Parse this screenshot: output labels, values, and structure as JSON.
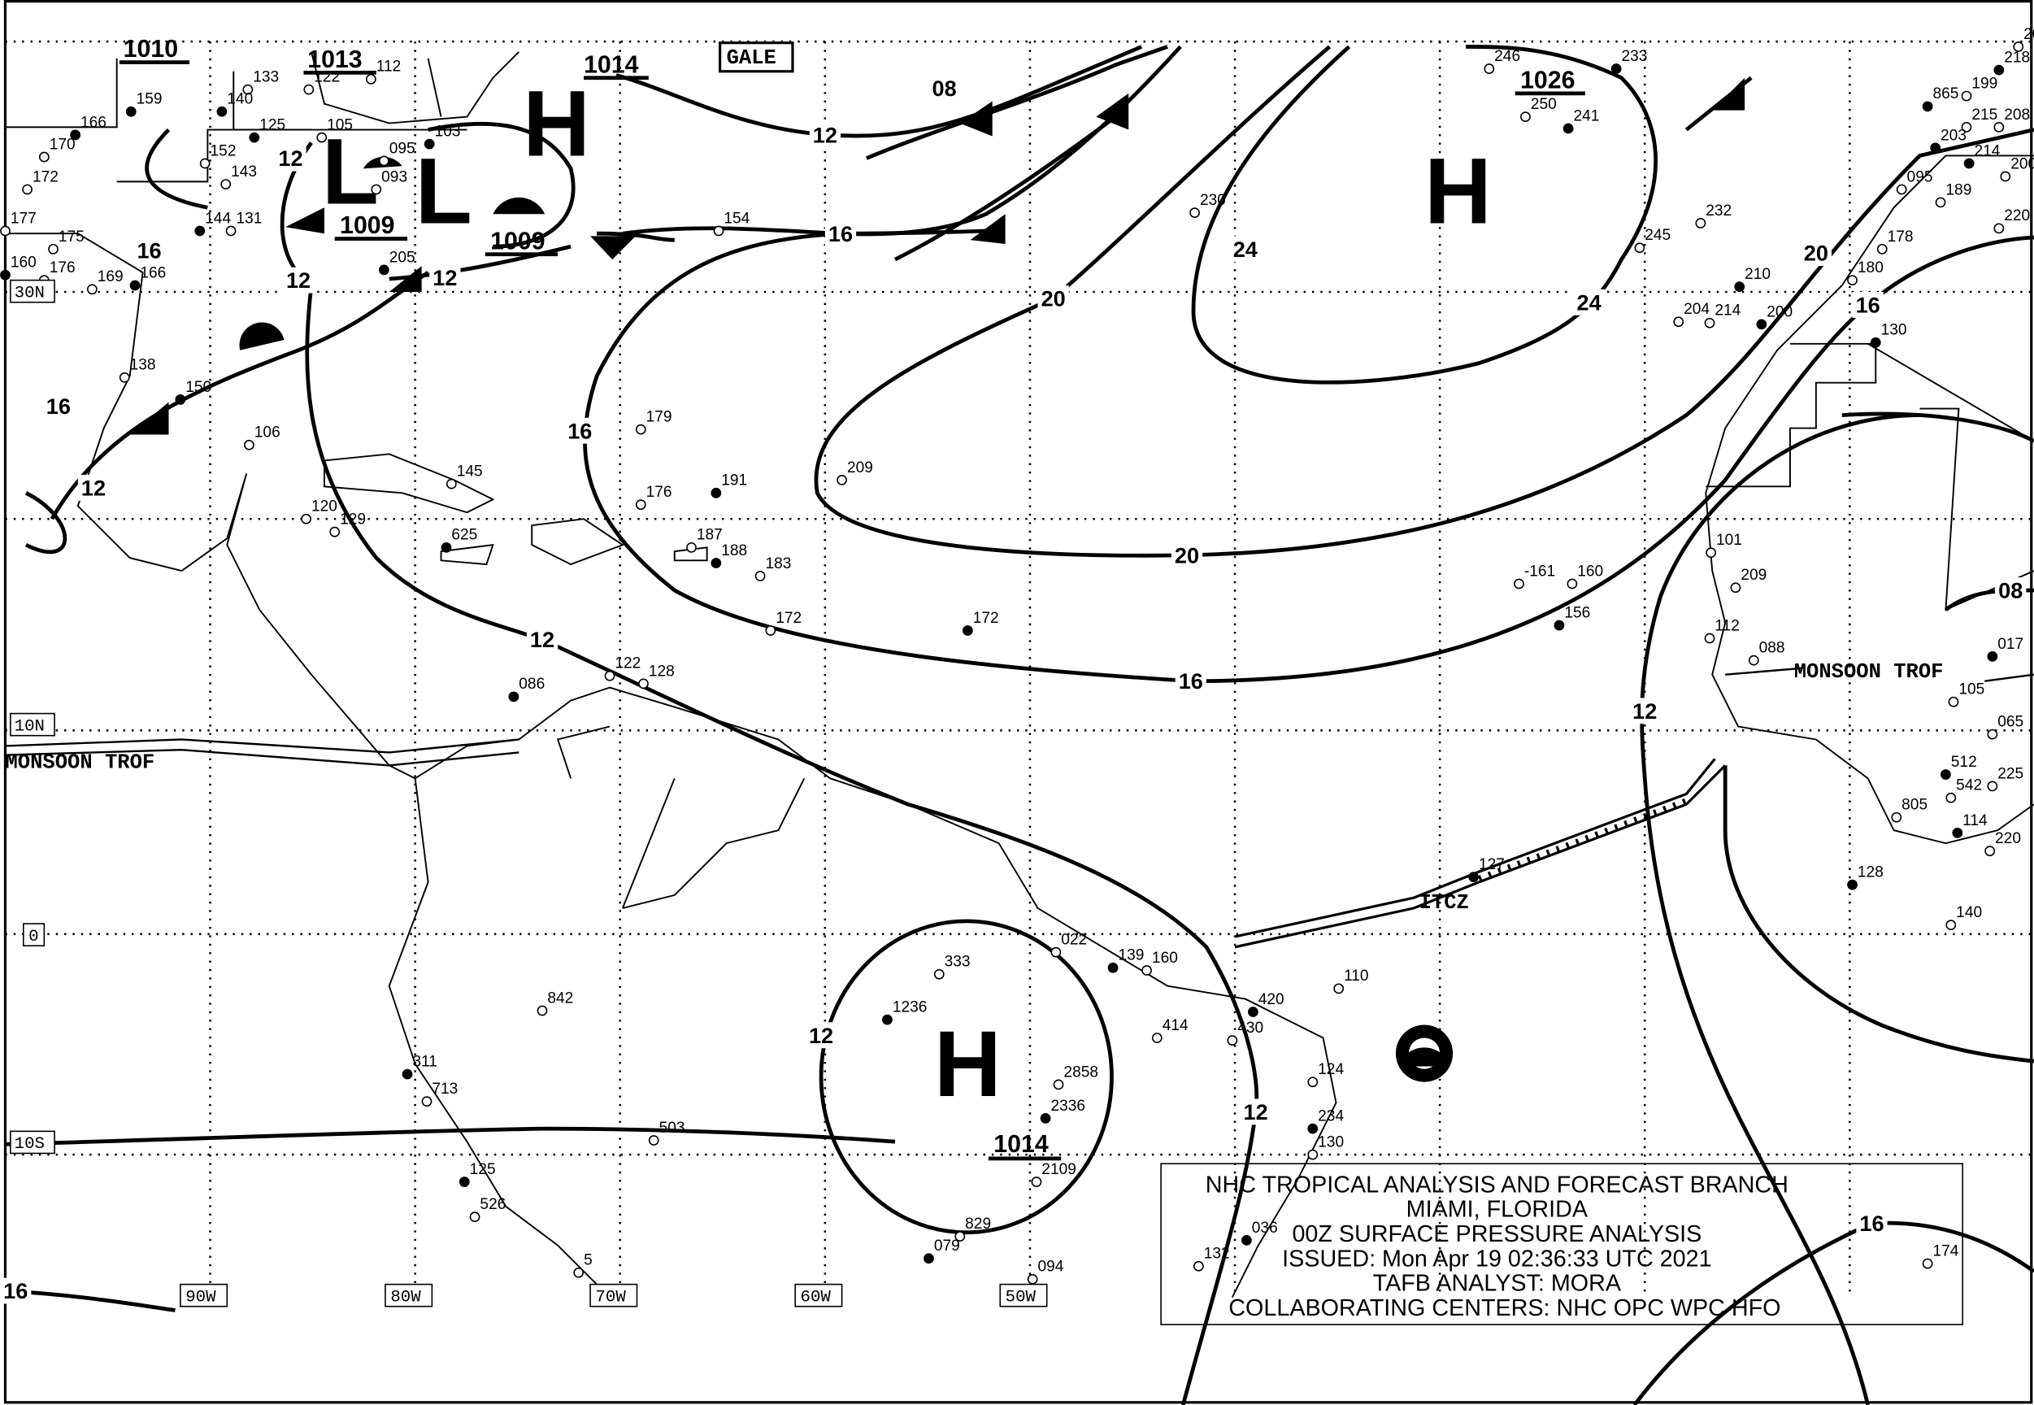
{
  "map": {
    "title_block": {
      "line1": "NHC TROPICAL ANALYSIS AND FORECAST BRANCH",
      "line2": "MIAMI, FLORIDA",
      "line3": "00Z SURFACE PRESSURE ANALYSIS",
      "line4": "ISSUED: Mon Apr 19 02:36:33 UTC 2021",
      "line5": "TAFB ANALYST: MORA",
      "line6": "COLLABORATING CENTERS: NHC OPC WPC HFO"
    },
    "pressure_centers": [
      {
        "type": "H",
        "value": "1014"
      },
      {
        "type": "H",
        "value": "1026"
      },
      {
        "type": "H",
        "value": "1014"
      },
      {
        "type": "L",
        "value": "1009"
      },
      {
        "type": "L",
        "value": "1009"
      }
    ],
    "other_pressures": [
      "1010",
      "1013"
    ],
    "isobar_labels": [
      "08",
      "12",
      "16",
      "20",
      "24",
      "24",
      "20",
      "16",
      "16",
      "20",
      "16",
      "12",
      "12",
      "12",
      "12",
      "16",
      "16",
      "08",
      "12",
      "12",
      "12",
      "16",
      "16",
      "12"
    ],
    "lat_labels": [
      "30N",
      "10N",
      "0",
      "10S"
    ],
    "lon_labels": [
      "90W",
      "80W",
      "70W",
      "60W",
      "50W"
    ],
    "features": {
      "monsoon_west": "MONSOON TROF",
      "monsoon_east": "MONSOON TROF",
      "itcz": "ITCZ",
      "gale": "GALE"
    },
    "stations": [
      "159",
      "170",
      "172",
      "166",
      "177",
      "175",
      "160",
      "176",
      "169",
      "166",
      "138",
      "133",
      "140",
      "122",
      "112",
      "125",
      "152",
      "143",
      "144",
      "131",
      "105",
      "103",
      "095",
      "093",
      "205",
      "154",
      "230",
      "233",
      "246",
      "250",
      "241",
      "245",
      "232",
      "210",
      "204",
      "214",
      "200",
      "180",
      "178",
      "130",
      "179",
      "176",
      "191",
      "209",
      "187",
      "188",
      "183",
      "172",
      "172",
      "122",
      "128",
      "086",
      "120",
      "129",
      "625",
      "145",
      "106",
      "150",
      "101",
      "209",
      "127",
      "110",
      "140",
      "128",
      "174",
      "842",
      "311",
      "713",
      "503",
      "1236",
      "333",
      "022",
      "139",
      "160",
      "414",
      "420",
      "430",
      "2858",
      "2336",
      "2109",
      "829",
      "079",
      "094",
      "132",
      "125",
      "526",
      "5",
      "036",
      "124",
      "130",
      "234",
      "-161",
      "160",
      "156",
      "088",
      "112",
      "512",
      "542",
      "805",
      "114",
      "225",
      "220",
      "017",
      "065",
      "105",
      "865",
      "199",
      "215",
      "218",
      "206",
      "208",
      "203",
      "095",
      "189",
      "214",
      "200",
      "220"
    ],
    "colors": {
      "ink": "#000000",
      "background": "#ffffff"
    },
    "icons": [
      "noaa-logo"
    ]
  }
}
